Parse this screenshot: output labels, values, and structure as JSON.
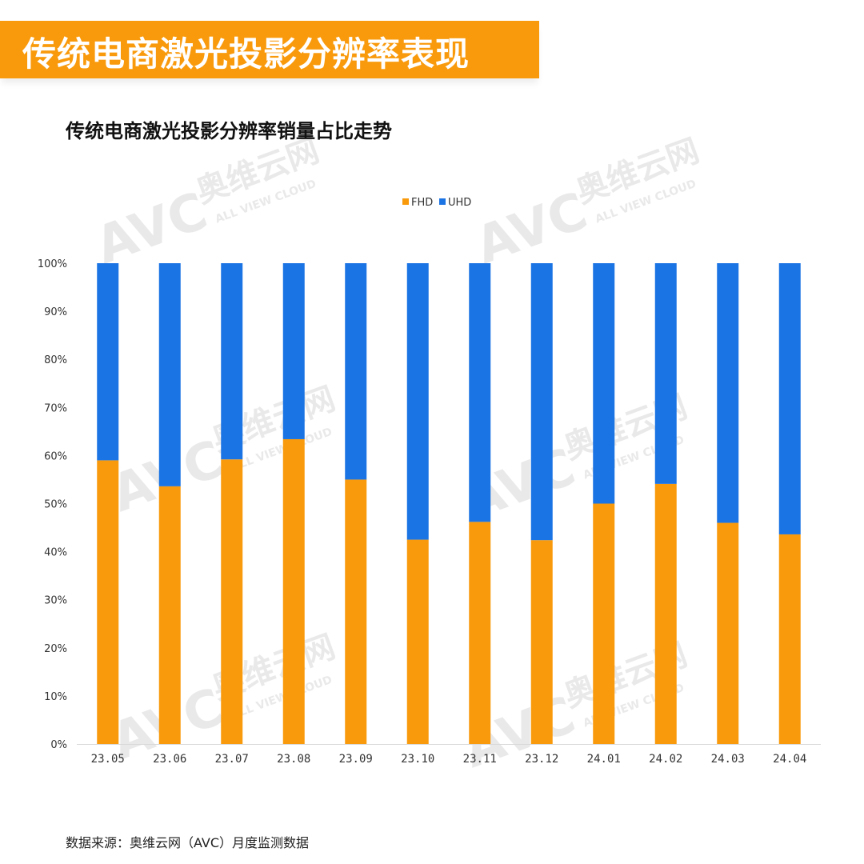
{
  "header": {
    "title": "传统电商激光投影分辨率表现"
  },
  "footer": {
    "source": "数据来源：奥维云网（AVC）月度监测数据"
  },
  "watermark": {
    "logo": "AVC",
    "brand": "奥维云网",
    "tagline": "ALL VIEW CLOUD"
  },
  "colors": {
    "FHD": "#f99a0c",
    "UHD": "#1b74e4",
    "grid": "#d9d9d9"
  },
  "chart_data": {
    "type": "bar",
    "stacked": true,
    "title": "传统电商激光投影分辨率销量占比走势",
    "categories": [
      "23.05",
      "23.06",
      "23.07",
      "23.08",
      "23.09",
      "23.10",
      "23.11",
      "23.12",
      "24.01",
      "24.02",
      "24.03",
      "24.04"
    ],
    "series": [
      {
        "name": "FHD",
        "values": [
          59,
          53.6,
          59.2,
          63.4,
          55,
          42.5,
          46.2,
          42.4,
          50,
          54.1,
          46,
          43.6
        ]
      },
      {
        "name": "UHD",
        "values": [
          41,
          46.4,
          40.8,
          36.6,
          45,
          57.5,
          53.8,
          57.6,
          50,
          45.9,
          54,
          56.4
        ]
      }
    ],
    "yticks": [
      "0%",
      "10%",
      "20%",
      "30%",
      "40%",
      "50%",
      "60%",
      "70%",
      "80%",
      "90%",
      "100%"
    ],
    "ylim": [
      0,
      100
    ],
    "legend_position": "top-center",
    "xlabel": "",
    "ylabel": ""
  }
}
